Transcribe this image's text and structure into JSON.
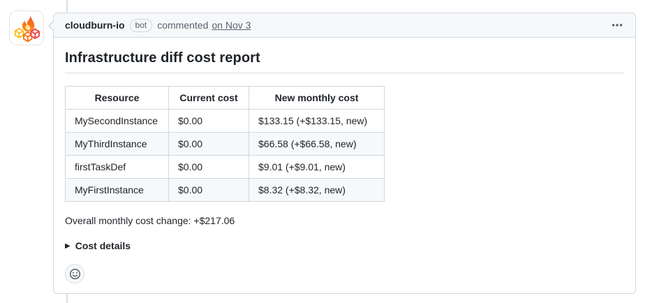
{
  "colors": {
    "border": "#d0d7de",
    "header_bg": "#f6f8fa",
    "text": "#1f2328",
    "muted_text": "#59636e",
    "zebra_row_bg": "#f6f8fa",
    "logo_orange": "#f97316",
    "logo_yellow": "#fbbf24",
    "logo_red": "#ef4444"
  },
  "icons": {
    "avatar": "flame-and-cubes-logo",
    "kebab_menu": "⋯",
    "details_marker": "▶",
    "add_reaction": "smiley-face"
  },
  "comment": {
    "author": "cloudburn-io",
    "badge": "bot",
    "action_text": "commented",
    "timestamp": "on Nov 3"
  },
  "report": {
    "title": "Infrastructure diff cost report",
    "table": {
      "headers": [
        "Resource",
        "Current cost",
        "New monthly cost"
      ],
      "rows": [
        [
          "MySecondInstance",
          "$0.00",
          "$133.15 (+$133.15, new)"
        ],
        [
          "MyThirdInstance",
          "$0.00",
          "$66.58 (+$66.58, new)"
        ],
        [
          "firstTaskDef",
          "$0.00",
          "$9.01 (+$9.01, new)"
        ],
        [
          "MyFirstInstance",
          "$0.00",
          "$8.32 (+$8.32, new)"
        ]
      ]
    },
    "summary": "Overall monthly cost change: +$217.06",
    "details_label": "Cost details"
  }
}
